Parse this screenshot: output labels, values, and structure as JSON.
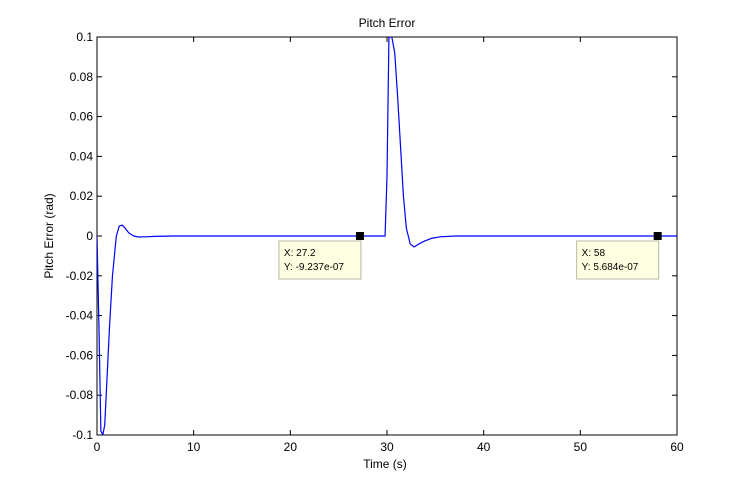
{
  "chart_data": {
    "type": "line",
    "title": "Pitch Error",
    "xlabel": "Time (s)",
    "ylabel": "Pitch Error (rad)",
    "xlim": [
      0,
      60
    ],
    "ylim": [
      -0.1,
      0.1
    ],
    "grid": false,
    "legend": "none",
    "xticks": [
      0,
      10,
      20,
      30,
      40,
      50,
      60
    ],
    "xtick_labels": [
      "0",
      "10",
      "20",
      "30",
      "40",
      "50",
      "60"
    ],
    "yticks": [
      0.1,
      0.08,
      0.06,
      0.04,
      0.02,
      0,
      -0.02,
      -0.04,
      -0.06,
      -0.08,
      -0.1
    ],
    "ytick_labels": [
      "0.1",
      "0.08",
      "0.06",
      "0.04",
      "0.02",
      "0",
      "-0.02",
      "-0.04",
      "-0.06",
      "-0.08",
      "-0.1"
    ],
    "series": [
      {
        "color": "#0000ff",
        "x": [
          0,
          0.2,
          0.4,
          0.6,
          0.8,
          1.0,
          1.3,
          1.6,
          2.0,
          2.3,
          2.6,
          2.9,
          3.3,
          3.8,
          4.3,
          5.0,
          6.0,
          8.0,
          15.0,
          27.2,
          29.0,
          29.8,
          30.0,
          30.2,
          30.5,
          30.8,
          31.1,
          31.4,
          31.7,
          32.0,
          32.4,
          32.8,
          33.3,
          33.9,
          34.6,
          35.5,
          37.0,
          40.0,
          50.0,
          58.0,
          60.0
        ],
        "y": [
          0.0,
          -0.045,
          -0.098,
          -0.1,
          -0.095,
          -0.075,
          -0.045,
          -0.02,
          0.0,
          0.005,
          0.0055,
          0.004,
          0.0015,
          0.0,
          -0.0005,
          -0.0004,
          -0.0002,
          0.0,
          0.0,
          -9.24e-07,
          0.0,
          0.0,
          0.03,
          0.1,
          0.1,
          0.092,
          0.07,
          0.045,
          0.02,
          0.004,
          -0.004,
          -0.0055,
          -0.004,
          -0.0025,
          -0.0012,
          -0.0004,
          0.0,
          0.0,
          0.0,
          5.68e-07,
          0.0
        ]
      }
    ],
    "annotations": [
      {
        "x": 27.2,
        "y": -9.24e-07,
        "line1": "X: 27.2",
        "line2": "Y: -9.237e-07"
      },
      {
        "x": 58,
        "y": 5.68e-07,
        "line1": "X: 58",
        "line2": "Y: 5.684e-07"
      }
    ]
  }
}
